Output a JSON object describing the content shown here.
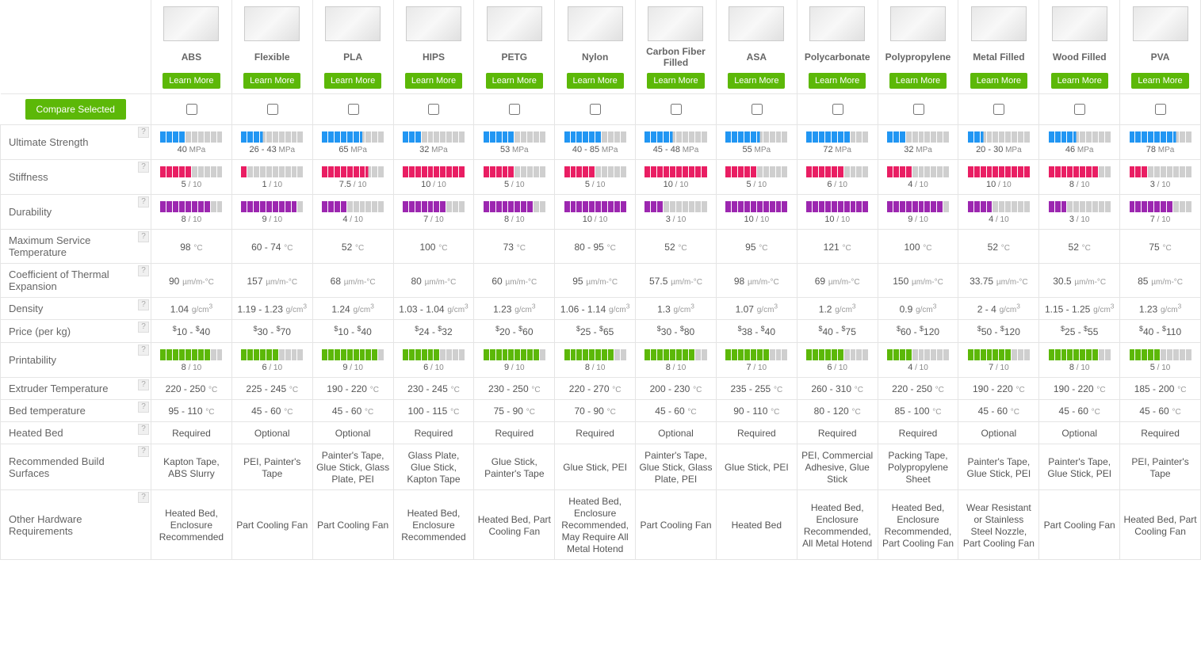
{
  "ui": {
    "learn_more": "Learn More",
    "compare_selected": "Compare Selected",
    "help_glyph": "?"
  },
  "colors": {
    "strength": "#2196f3",
    "stiffness": "#e91e63",
    "durability": "#9c27b0",
    "printability": "#5cb808",
    "bar_bg": "#cfcfcf",
    "button": "#5cb808"
  },
  "units": {
    "strength": "MPa",
    "temp": "°C",
    "cte": "µm/m-°C",
    "density": "g/cm",
    "density_sup": "3",
    "price_prefix": "$"
  },
  "row_labels": {
    "strength": "Ultimate Strength",
    "stiffness": "Stiffness",
    "durability": "Durability",
    "max_temp": "Maximum Service Temperature",
    "cte": "Coefficient of Thermal Expansion",
    "density": "Density",
    "price": "Price (per kg)",
    "printability": "Printability",
    "extruder": "Extruder Temperature",
    "bed_temp": "Bed temperature",
    "heated_bed": "Heated Bed",
    "surfaces": "Recommended Build Surfaces",
    "other": "Other Hardware Requirements"
  },
  "materials": [
    {
      "name": "ABS",
      "strength_val": "40",
      "strength_bar": 4,
      "stiffness_val": "5",
      "stiffness_bar": 5,
      "durability_val": "8",
      "durability_bar": 8,
      "max_temp": "98",
      "cte": "90",
      "density": "1.04",
      "price": "10 - ",
      "price2": "40",
      "printability_val": "8",
      "printability_bar": 8,
      "extruder": "220 - 250",
      "bed": "95 - 110",
      "heated": "Required",
      "surfaces": "Kapton Tape, ABS Slurry",
      "other": "Heated Bed, Enclosure Recommended"
    },
    {
      "name": "Flexible",
      "strength_val": "26 - 43",
      "strength_bar": 3.5,
      "stiffness_val": "1",
      "stiffness_bar": 1,
      "durability_val": "9",
      "durability_bar": 9,
      "max_temp": "60 - 74",
      "cte": "157",
      "density": "1.19 - 1.23",
      "price": "30 - ",
      "price2": "70",
      "printability_val": "6",
      "printability_bar": 6,
      "extruder": "225 - 245",
      "bed": "45 - 60",
      "heated": "Optional",
      "surfaces": "PEI, Painter's Tape",
      "other": "Part Cooling Fan"
    },
    {
      "name": "PLA",
      "strength_val": "65",
      "strength_bar": 6.5,
      "stiffness_val": "7.5",
      "stiffness_bar": 7.5,
      "durability_val": "4",
      "durability_bar": 4,
      "max_temp": "52",
      "cte": "68",
      "density": "1.24",
      "price": "10 - ",
      "price2": "40",
      "printability_val": "9",
      "printability_bar": 9,
      "extruder": "190 - 220",
      "bed": "45 - 60",
      "heated": "Optional",
      "surfaces": "Painter's Tape, Glue Stick, Glass Plate, PEI",
      "other": "Part Cooling Fan"
    },
    {
      "name": "HIPS",
      "strength_val": "32",
      "strength_bar": 3,
      "stiffness_val": "10",
      "stiffness_bar": 10,
      "durability_val": "7",
      "durability_bar": 7,
      "max_temp": "100",
      "cte": "80",
      "density": "1.03 - 1.04",
      "price": "24 - ",
      "price2": "32",
      "printability_val": "6",
      "printability_bar": 6,
      "extruder": "230 - 245",
      "bed": "100 - 115",
      "heated": "Required",
      "surfaces": "Glass Plate, Glue Stick, Kapton Tape",
      "other": "Heated Bed, Enclosure Recommended"
    },
    {
      "name": "PETG",
      "strength_val": "53",
      "strength_bar": 5,
      "stiffness_val": "5",
      "stiffness_bar": 5,
      "durability_val": "8",
      "durability_bar": 8,
      "max_temp": "73",
      "cte": "60",
      "density": "1.23",
      "price": "20 - ",
      "price2": "60",
      "printability_val": "9",
      "printability_bar": 9,
      "extruder": "230 - 250",
      "bed": "75 - 90",
      "heated": "Required",
      "surfaces": "Glue Stick, Painter's Tape",
      "other": "Heated Bed, Part Cooling Fan"
    },
    {
      "name": "Nylon",
      "strength_val": "40 - 85",
      "strength_bar": 6,
      "stiffness_val": "5",
      "stiffness_bar": 5,
      "durability_val": "10",
      "durability_bar": 10,
      "max_temp": "80 - 95",
      "cte": "95",
      "density": "1.06 - 1.14",
      "price": "25 - ",
      "price2": "65",
      "printability_val": "8",
      "printability_bar": 8,
      "extruder": "220 - 270",
      "bed": "70 - 90",
      "heated": "Required",
      "surfaces": "Glue Stick, PEI",
      "other": "Heated Bed, Enclosure Recommended, May Require All Metal Hotend"
    },
    {
      "name": "Carbon Fiber Filled",
      "strength_val": "45 - 48",
      "strength_bar": 4.5,
      "stiffness_val": "10",
      "stiffness_bar": 10,
      "durability_val": "3",
      "durability_bar": 3,
      "max_temp": "52",
      "cte": "57.5",
      "density": "1.3",
      "price": "30 - ",
      "price2": "80",
      "printability_val": "8",
      "printability_bar": 8,
      "extruder": "200 - 230",
      "bed": "45 - 60",
      "heated": "Optional",
      "surfaces": "Painter's Tape, Glue Stick, Glass Plate, PEI",
      "other": "Part Cooling Fan"
    },
    {
      "name": "ASA",
      "strength_val": "55",
      "strength_bar": 5.5,
      "stiffness_val": "5",
      "stiffness_bar": 5,
      "durability_val": "10",
      "durability_bar": 10,
      "max_temp": "95",
      "cte": "98",
      "density": "1.07",
      "price": "38 - ",
      "price2": "40",
      "printability_val": "7",
      "printability_bar": 7,
      "extruder": "235 - 255",
      "bed": "90 - 110",
      "heated": "Required",
      "surfaces": "Glue Stick, PEI",
      "other": "Heated Bed"
    },
    {
      "name": "Polycarbonate",
      "strength_val": "72",
      "strength_bar": 7,
      "stiffness_val": "6",
      "stiffness_bar": 6,
      "durability_val": "10",
      "durability_bar": 10,
      "max_temp": "121",
      "cte": "69",
      "density": "1.2",
      "price": "40 - ",
      "price2": "75",
      "printability_val": "6",
      "printability_bar": 6,
      "extruder": "260 - 310",
      "bed": "80 - 120",
      "heated": "Required",
      "surfaces": "PEI, Commercial Adhesive, Glue Stick",
      "other": "Heated Bed, Enclosure Recommended, All Metal Hotend"
    },
    {
      "name": "Polypropylene",
      "strength_val": "32",
      "strength_bar": 3,
      "stiffness_val": "4",
      "stiffness_bar": 4,
      "durability_val": "9",
      "durability_bar": 9,
      "max_temp": "100",
      "cte": "150",
      "density": "0.9",
      "price": "60 - ",
      "price2": "120",
      "printability_val": "4",
      "printability_bar": 4,
      "extruder": "220 - 250",
      "bed": "85 - 100",
      "heated": "Required",
      "surfaces": "Packing Tape, Polypropylene Sheet",
      "other": "Heated Bed, Enclosure Recommended, Part Cooling Fan"
    },
    {
      "name": "Metal Filled",
      "strength_val": "20 - 30",
      "strength_bar": 2.5,
      "stiffness_val": "10",
      "stiffness_bar": 10,
      "durability_val": "4",
      "durability_bar": 4,
      "max_temp": "52",
      "cte": "33.75",
      "density": "2 - 4",
      "price": "50 - ",
      "price2": "120",
      "printability_val": "7",
      "printability_bar": 7,
      "extruder": "190 - 220",
      "bed": "45 - 60",
      "heated": "Optional",
      "surfaces": "Painter's Tape, Glue Stick, PEI",
      "other": "Wear Resistant or Stainless Steel Nozzle, Part Cooling Fan"
    },
    {
      "name": "Wood Filled",
      "strength_val": "46",
      "strength_bar": 4.5,
      "stiffness_val": "8",
      "stiffness_bar": 8,
      "durability_val": "3",
      "durability_bar": 3,
      "max_temp": "52",
      "cte": "30.5",
      "density": "1.15 - 1.25",
      "price": "25 - ",
      "price2": "55",
      "printability_val": "8",
      "printability_bar": 8,
      "extruder": "190 - 220",
      "bed": "45 - 60",
      "heated": "Optional",
      "surfaces": "Painter's Tape, Glue Stick, PEI",
      "other": "Part Cooling Fan"
    },
    {
      "name": "PVA",
      "strength_val": "78",
      "strength_bar": 7.5,
      "stiffness_val": "3",
      "stiffness_bar": 3,
      "durability_val": "7",
      "durability_bar": 7,
      "max_temp": "75",
      "cte": "85",
      "density": "1.23",
      "price": "40 - ",
      "price2": "110",
      "printability_val": "5",
      "printability_bar": 5,
      "extruder": "185 - 200",
      "bed": "45 - 60",
      "heated": "Required",
      "surfaces": "PEI, Painter's Tape",
      "other": "Heated Bed, Part Cooling Fan"
    }
  ]
}
